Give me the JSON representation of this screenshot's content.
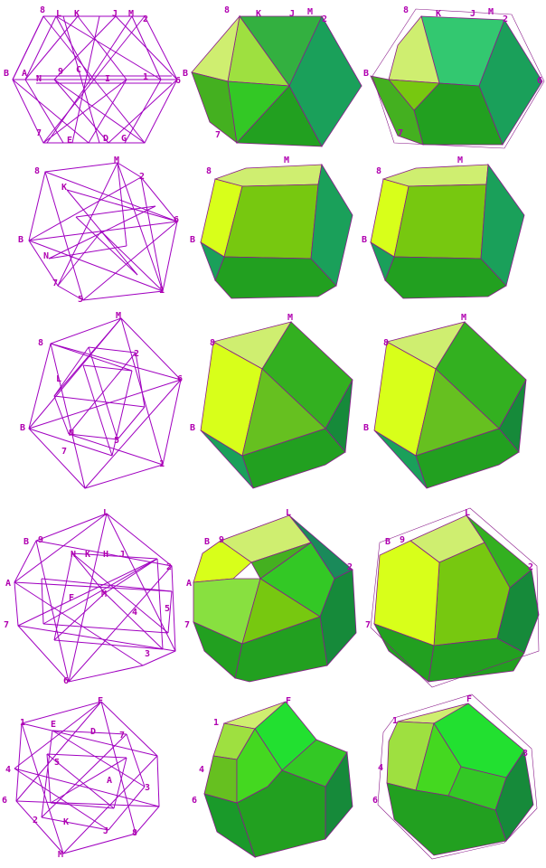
{
  "colors": {
    "wire": "#a000c0",
    "label": "#b000b0",
    "edge": "#8a1a8a",
    "yellow": "#d8ff1a",
    "lime": "#9ee040",
    "light": "#cfee70",
    "green": "#44c82a",
    "mid": "#22a020",
    "dark": "#168a2a",
    "teal": "#1aa05a",
    "bright": "#22e030"
  },
  "rows": [
    {
      "name": "row-1",
      "labels": [
        "8",
        "L",
        "K",
        "J",
        "M",
        "2",
        "B",
        "A",
        "N",
        "9",
        "C",
        "I",
        "1",
        "6",
        "7",
        "E",
        "D",
        "G"
      ]
    },
    {
      "name": "row-2",
      "labels": [
        "8",
        "M",
        "2",
        "K",
        "B",
        "6",
        "N",
        "7",
        "5",
        "1"
      ]
    },
    {
      "name": "row-3",
      "labels": [
        "M",
        "8",
        "2",
        "6",
        "L",
        "B",
        "N",
        "7",
        "5",
        "1"
      ]
    },
    {
      "name": "row-4",
      "labels": [
        "L",
        "B",
        "9",
        "N",
        "K",
        "H",
        "J",
        "2",
        "A",
        "F",
        "M",
        "4",
        "7",
        "5",
        "6",
        "3"
      ]
    },
    {
      "name": "row-5",
      "labels": [
        "F",
        "1",
        "E",
        "D",
        "7",
        "4",
        "6",
        "5",
        "3",
        "A",
        "2",
        "K",
        "J",
        "8",
        "M"
      ]
    }
  ]
}
